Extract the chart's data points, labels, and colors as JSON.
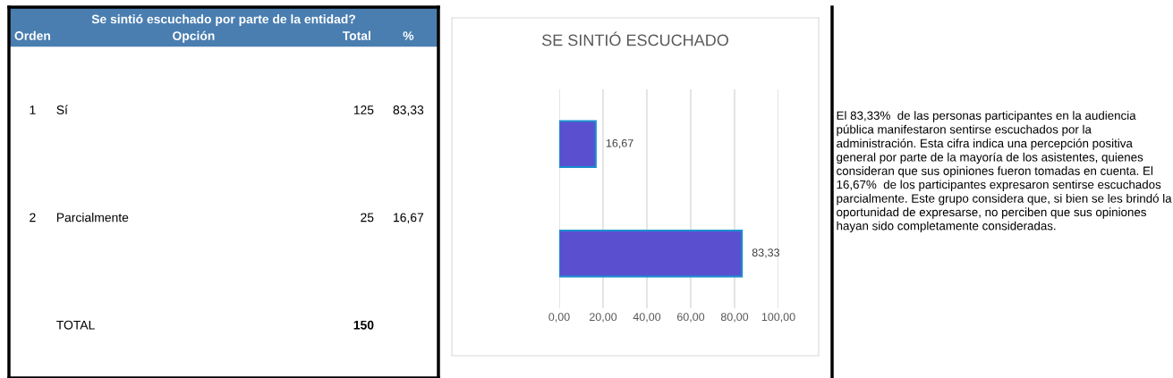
{
  "chart_data": [
    {
      "type": "other",
      "title": "Se sintió escuchado por parte de la entidad?",
      "annotations": [
        [
          "Orden",
          "Opción",
          "Total",
          "%"
        ],
        [
          "1",
          "Sí",
          "125",
          "83,33"
        ],
        [
          "2",
          "Parcialmente",
          "25",
          "16,67"
        ],
        [
          null,
          "TOTAL",
          "150",
          null
        ]
      ]
    },
    {
      "type": "bar",
      "title": "SE SINTIÓ ESCUCHADO",
      "orientation": "horizontal",
      "categories": [
        null,
        null
      ],
      "values": [
        16.67,
        83.33
      ],
      "color": "#5a4fcf",
      "value_labels": [
        "16,67",
        "83,33"
      ],
      "xlim": [
        0,
        100
      ],
      "xticks": [
        {
          "value": 0,
          "label": "0,00"
        },
        {
          "value": 20,
          "label": "20,00"
        },
        {
          "value": 40,
          "label": "40,00"
        },
        {
          "value": 60,
          "label": "60,00"
        },
        {
          "value": 80,
          "label": "80,00"
        },
        {
          "value": 100,
          "label": "100,00"
        }
      ],
      "grid": "x"
    },
    {
      "type": "other",
      "annotations": [
        "El 83,33%  de las personas participantes en la audiencia pública manifestaron sentirse escuchados por la administración. Esta cifra indica una percepción positiva general por parte de la mayoría de los asistentes, quienes consideran que sus opiniones fueron tomadas en cuenta. El 16,67%  de los participantes expresaron sentirse escuchados parcialmente. Este grupo considera que, si bien se les brindó la oportunidad de expresarse, no perciben que sus opiniones hayan sido completamente consideradas."
      ]
    }
  ]
}
